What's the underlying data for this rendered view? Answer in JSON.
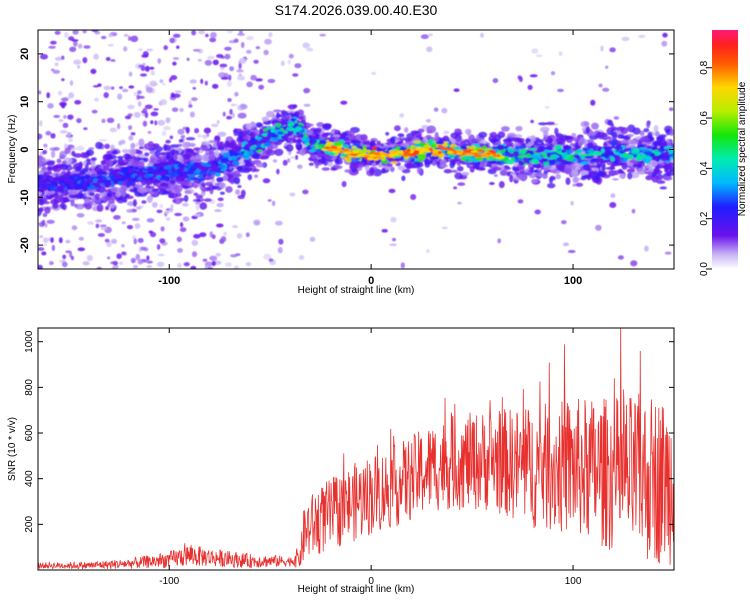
{
  "title": "S174.2026.039.00.40.E30",
  "chart_data": [
    {
      "type": "heatmap",
      "xlabel": "Height of straight line (km)",
      "ylabel": "Frequency (Hz)",
      "xlim": [
        -165,
        150
      ],
      "ylim": [
        -25,
        25
      ],
      "xticks": [
        -100,
        0,
        100
      ],
      "yticks": [
        -20,
        -10,
        0,
        10,
        20
      ],
      "colorbar": {
        "label": "Normalized spectral amplitude",
        "range": [
          0,
          0.95
        ],
        "ticks": [
          "0.0",
          "0.2",
          "0.4",
          "0.6",
          "0.8"
        ],
        "tick_values": [
          0,
          0.2,
          0.4,
          0.6,
          0.8
        ]
      },
      "ridge": {
        "x": [
          -165,
          -140,
          -120,
          -100,
          -80,
          -65,
          -55,
          -45,
          -38,
          -30,
          -20,
          -10,
          0,
          10,
          20,
          30,
          40,
          60,
          80,
          100,
          120,
          140,
          150
        ],
        "freq_hz": [
          -7,
          -7,
          -5.5,
          -4.5,
          -4.5,
          -1,
          1.5,
          4,
          5,
          1.5,
          0.3,
          -0.5,
          -1.5,
          -1,
          -0.5,
          0,
          -0.5,
          -1,
          -1.5,
          -1.5,
          -0.5,
          -1,
          -1
        ],
        "peak_amplitude": [
          0.25,
          0.3,
          0.3,
          0.3,
          0.3,
          0.4,
          0.5,
          0.5,
          0.45,
          0.55,
          0.7,
          0.85,
          0.9,
          0.8,
          0.7,
          0.8,
          0.7,
          0.65,
          0.5,
          0.5,
          0.45,
          0.45,
          0.4
        ]
      }
    },
    {
      "type": "line",
      "xlabel": "Height of straight line (km)",
      "ylabel": "SNR (10 * v/v)",
      "xlim": [
        -165,
        150
      ],
      "ylim": [
        0,
        1060
      ],
      "xticks": [
        -100,
        0,
        100
      ],
      "yticks": [
        200,
        400,
        600,
        800,
        1000
      ],
      "series": [
        {
          "name": "SNR",
          "color": "#e8312f",
          "envelope_x": [
            -165,
            -140,
            -120,
            -100,
            -90,
            -80,
            -60,
            -40,
            -35,
            -33,
            -25,
            -10,
            0,
            10,
            20,
            30,
            40,
            60,
            80,
            100,
            120,
            140,
            150
          ],
          "median": [
            20,
            20,
            28,
            45,
            65,
            55,
            40,
            38,
            60,
            170,
            220,
            290,
            330,
            360,
            400,
            450,
            470,
            480,
            450,
            450,
            420,
            400,
            380
          ],
          "spread": [
            15,
            18,
            25,
            40,
            55,
            45,
            35,
            25,
            60,
            150,
            170,
            190,
            200,
            200,
            210,
            220,
            230,
            250,
            300,
            340,
            380,
            420,
            400
          ]
        }
      ]
    }
  ]
}
